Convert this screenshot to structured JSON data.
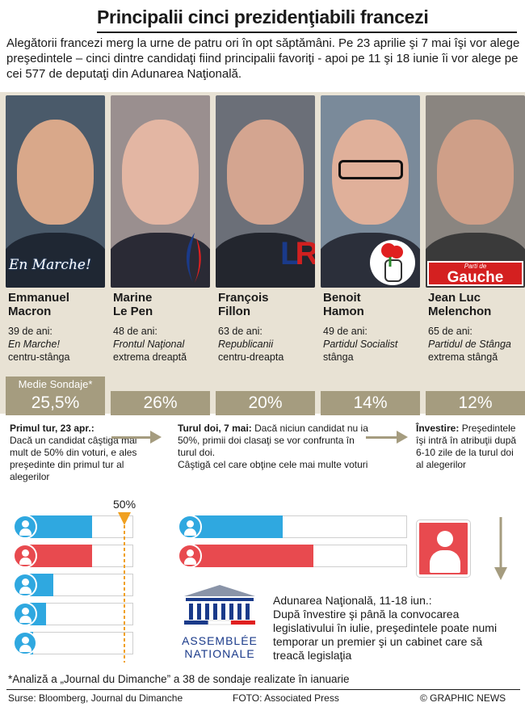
{
  "title": "Principalii cinci prezidenţiabili francezi",
  "intro": "Alegătorii francezi merg la urne de patru ori în opt săptămâni. Pe 23 aprilie şi 7 mai îşi vor alege preşedintele – cinci dintre candidaţi fiind principalii favoriţi - apoi pe 11 şi 18 iunie îi vor alege pe cei 577 de deputaţi din Adunarea Naţională.",
  "poll_label": "Medie Sondaje*",
  "candidates": [
    {
      "name_line1": "Emmanuel",
      "name_line2": "Macron",
      "age": "39 de ani:",
      "party": "En Marche!",
      "orientation": "centru-stânga",
      "pct": "25,5%",
      "logo_text": "En Marche!",
      "photo_bg": "#4a5a6a",
      "skin": "#d9a88a",
      "suit": "#1f2733"
    },
    {
      "name_line1": "Marine",
      "name_line2": "Le Pen",
      "age": "48 de ani:",
      "party": "Frontul Naţional",
      "orientation": "extrema dreaptă",
      "pct": "26%",
      "logo_text": "",
      "photo_bg": "#9a8f8f",
      "skin": "#e3b6a3",
      "suit": "#2a2a35"
    },
    {
      "name_line1": "François",
      "name_line2": "Fillon",
      "age": "63 de ani:",
      "party": "Republicanii",
      "orientation": "centru-dreapta",
      "pct": "20%",
      "logo_text": "LR",
      "photo_bg": "#6b6f78",
      "skin": "#d4a590",
      "suit": "#23262e"
    },
    {
      "name_line1": "Benoit",
      "name_line2": "Hamon",
      "age": "49 de ani:",
      "party": "Partidul Socialist",
      "orientation": "stânga",
      "pct": "14%",
      "logo_text": "",
      "photo_bg": "#7a8a9a",
      "skin": "#e0b09a",
      "suit": "#2b2f3a"
    },
    {
      "name_line1": "Jean Luc",
      "name_line2": "Melenchon",
      "age": "65 de ani:",
      "party": "Partidul de Stânga",
      "orientation": "extrema stângă",
      "pct": "12%",
      "logo_text": "Gauche",
      "logo_small": "Parti de",
      "photo_bg": "#8a8580",
      "skin": "#cf9f88",
      "suit": "#3a3a3a"
    }
  ],
  "stages": {
    "s1_title": "Primul tur, 23 apr.:",
    "s1_text": "Dacă un candidat câştigă mai mult de 50% din voturi, e ales preşedinte din primul tur al alegerilor",
    "s2_title": "Turul doi, 7 mai:",
    "s2_text1": "Dacă niciun candidat nu ia 50%, primii doi clasaţi se vor confrunta în turul doi.",
    "s2_text2": "Câştigă cel care obţine cele mai multe voturi",
    "s3_title": "Învestire:",
    "s3_text": "Preşedintele îşi intră în atribuţii după 6-10 zile de la turul doi al alegerilor"
  },
  "threshold_label": "50%",
  "round1_bars": [
    {
      "color": "blue",
      "fill": 0.62
    },
    {
      "color": "red",
      "fill": 0.62
    },
    {
      "color": "blue",
      "fill": 0.27
    },
    {
      "color": "blue",
      "fill": 0.2
    },
    {
      "color": "blue",
      "fill": 0.08
    }
  ],
  "round2_bars": [
    {
      "color": "blue",
      "fill": 0.43
    },
    {
      "color": "red",
      "fill": 0.57
    }
  ],
  "assembly_logo_line1": "ASSEMBLÉE",
  "assembly_logo_line2": "NATIONALE",
  "assembly_title": "Adunarea Naţională, 11-18 iun.:",
  "assembly_text": "După învestire şi până la convocarea legislativului în iulie, preşedintele poate numi temporar un premier şi un cabinet care să treacă legislaţia",
  "footnote": "*Analiză a „Journal du Dimanche” a 38 de sondaje realizate în ianuarie",
  "sources": "Surse: Bloomberg, Journal du Dimanche",
  "photo_credit": "FOTO: Associated Press",
  "copyright": "© GRAPHIC NEWS"
}
